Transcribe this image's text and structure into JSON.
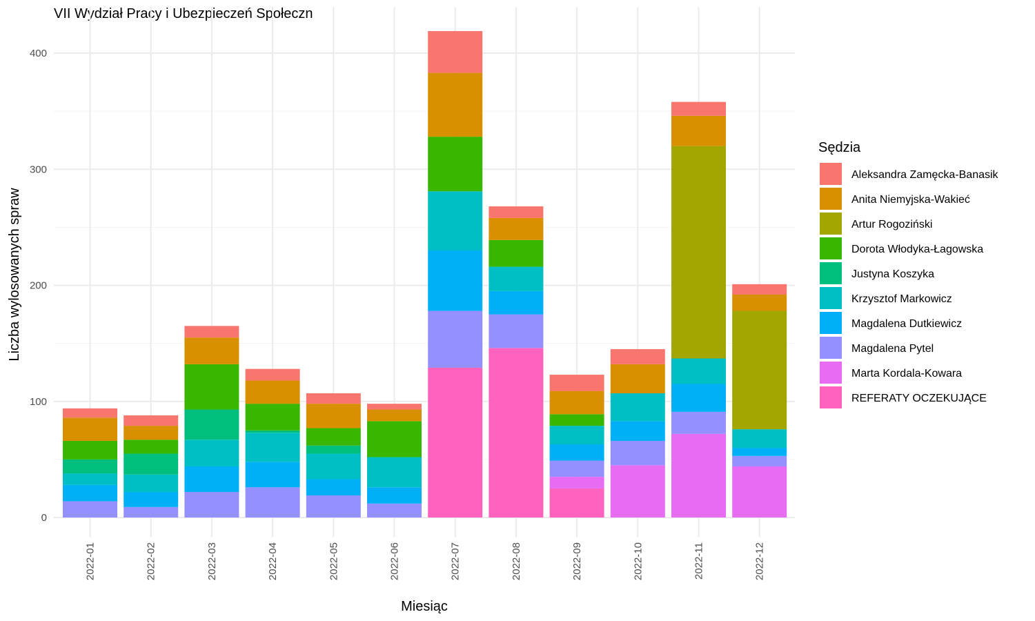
{
  "chart_data": {
    "type": "bar",
    "stacked": true,
    "title": "VII Wydział Pracy i Ubezpieczeń Społeczn",
    "xlabel": "Miesiąc",
    "ylabel": "Liczba wylosowanych spraw",
    "ylim": [
      0,
      425
    ],
    "yticks": [
      0,
      100,
      200,
      300,
      400
    ],
    "grid": true,
    "legend_title": "Sędzia",
    "legend_position": "right",
    "categories": [
      "2022-01",
      "2022-02",
      "2022-03",
      "2022-04",
      "2022-05",
      "2022-06",
      "2022-07",
      "2022-08",
      "2022-09",
      "2022-10",
      "2022-11",
      "2022-12"
    ],
    "series": [
      {
        "name": "Aleksandra Zamęcka-Banasik",
        "color": "#F8766D",
        "values": [
          8,
          9,
          10,
          10,
          9,
          5,
          36,
          10,
          14,
          13,
          12,
          9
        ]
      },
      {
        "name": "Anita Niemyjska-Wakieć",
        "color": "#D89000",
        "values": [
          20,
          12,
          23,
          20,
          21,
          10,
          55,
          19,
          20,
          25,
          26,
          14
        ]
      },
      {
        "name": "Artur Rogoziński",
        "color": "#A3A500",
        "values": [
          0,
          0,
          0,
          0,
          0,
          0,
          0,
          0,
          0,
          0,
          183,
          102
        ]
      },
      {
        "name": "Dorota Włodyka-Łagowska",
        "color": "#39B600",
        "values": [
          16,
          12,
          39,
          23,
          15,
          31,
          47,
          23,
          10,
          0,
          0,
          0
        ]
      },
      {
        "name": "Justyna Koszyka",
        "color": "#00BF7D",
        "values": [
          12,
          18,
          26,
          2,
          7,
          0,
          0,
          0,
          0,
          0,
          0,
          0
        ]
      },
      {
        "name": "Krzysztof Markowicz",
        "color": "#00BFC4",
        "values": [
          10,
          15,
          23,
          25,
          22,
          26,
          51,
          21,
          16,
          24,
          22,
          16
        ]
      },
      {
        "name": "Magdalena Dutkiewicz",
        "color": "#00B0F6",
        "values": [
          14,
          13,
          22,
          22,
          14,
          14,
          52,
          20,
          14,
          17,
          24,
          7
        ]
      },
      {
        "name": "Magdalena Pytel",
        "color": "#9590FF",
        "values": [
          14,
          9,
          22,
          26,
          19,
          12,
          49,
          29,
          14,
          21,
          19,
          9
        ]
      },
      {
        "name": "Marta Kordala-Kowara",
        "color": "#E76BF3",
        "values": [
          0,
          0,
          0,
          0,
          0,
          0,
          0,
          0,
          10,
          45,
          72,
          44
        ]
      },
      {
        "name": "REFERATY OCZEKUJĄCE",
        "color": "#FF62BC",
        "values": [
          0,
          0,
          0,
          0,
          0,
          0,
          129,
          146,
          25,
          0,
          0,
          0
        ]
      }
    ]
  }
}
